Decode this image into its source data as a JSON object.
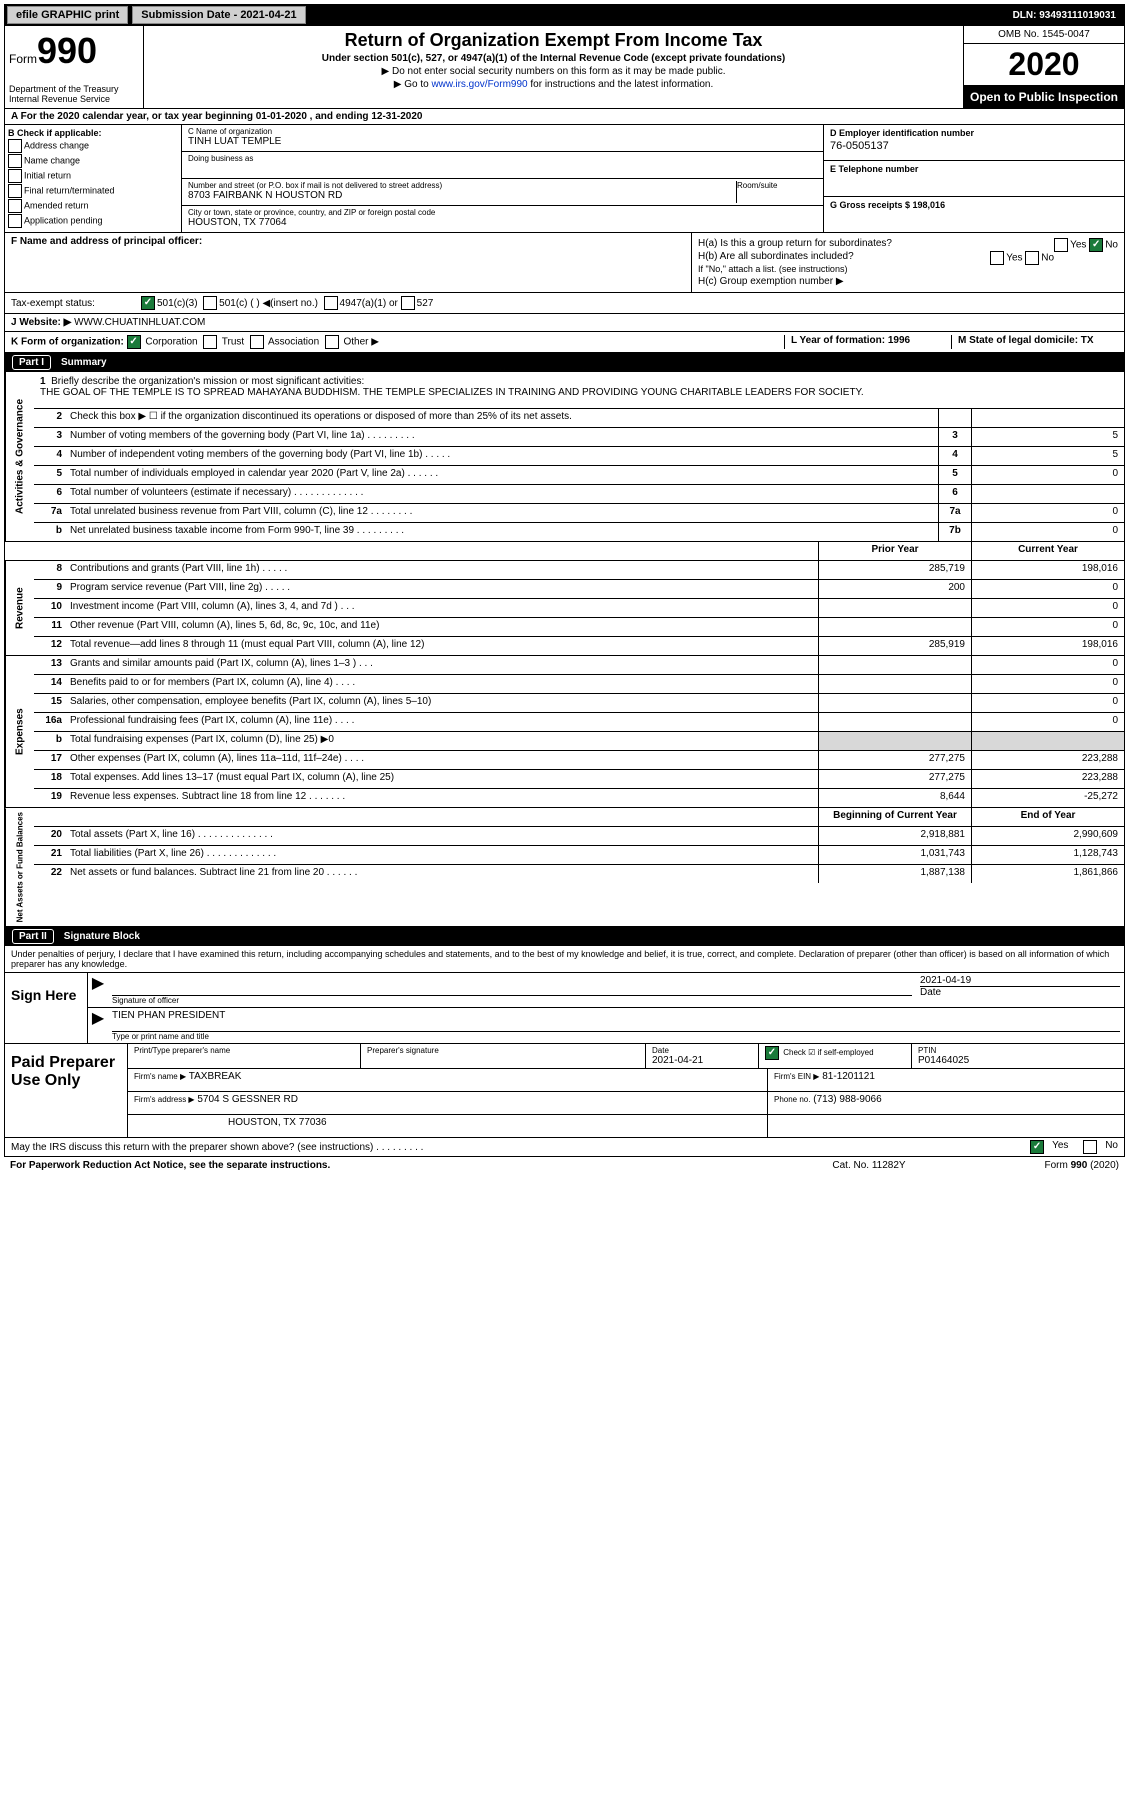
{
  "topbar": {
    "efile": "efile GRAPHIC print",
    "submission_label": "Submission Date - 2021-04-21",
    "dln": "DLN: 93493111019031"
  },
  "header": {
    "form_prefix": "Form",
    "form_number": "990",
    "dept": "Department of the Treasury\nInternal Revenue Service",
    "title": "Return of Organization Exempt From Income Tax",
    "sub1": "Under section 501(c), 527, or 4947(a)(1) of the Internal Revenue Code (except private foundations)",
    "sub2": "▶ Do not enter social security numbers on this form as it may be made public.",
    "sub3_pre": "▶ Go to ",
    "sub3_link": "www.irs.gov/Form990",
    "sub3_post": " for instructions and the latest information.",
    "omb": "OMB No. 1545-0047",
    "year": "2020",
    "open": "Open to Public Inspection"
  },
  "row_a": "A For the 2020 calendar year, or tax year beginning 01-01-2020    , and ending 12-31-2020",
  "section_b": {
    "title": "B Check if applicable:",
    "items": [
      "Address change",
      "Name change",
      "Initial return",
      "Final return/terminated",
      "Amended return",
      "Application pending"
    ]
  },
  "section_c": {
    "name_label": "C Name of organization",
    "name": "TINH LUAT TEMPLE",
    "dba_label": "Doing business as",
    "dba": "",
    "addr_label": "Number and street (or P.O. box if mail is not delivered to street address)",
    "room_label": "Room/suite",
    "addr": "8703 FAIRBANK N HOUSTON RD",
    "city_label": "City or town, state or province, country, and ZIP or foreign postal code",
    "city": "HOUSTON, TX  77064"
  },
  "section_d": {
    "label": "D Employer identification number",
    "value": "76-0505137"
  },
  "section_e": {
    "label": "E Telephone number",
    "value": ""
  },
  "section_g": {
    "label": "G Gross receipts $ 198,016"
  },
  "section_f": {
    "label": "F  Name and address of principal officer:",
    "value": ""
  },
  "section_h": {
    "ha": "H(a)  Is this a group return for subordinates?",
    "ha_yes": "Yes",
    "ha_no": "No",
    "hb": "H(b)  Are all subordinates included?",
    "hb_yes": "Yes",
    "hb_no": "No",
    "hb_note": "If \"No,\" attach a list. (see instructions)",
    "hc": "H(c)  Group exemption number ▶"
  },
  "tax_status": {
    "label": "Tax-exempt status:",
    "opt1": "501(c)(3)",
    "opt2": "501(c) (  ) ◀(insert no.)",
    "opt3": "4947(a)(1) or",
    "opt4": "527"
  },
  "website": {
    "label": "J   Website: ▶",
    "value": "WWW.CHUATINHLUAT.COM"
  },
  "row_k": {
    "label": "K Form of organization:",
    "opts": [
      "Corporation",
      "Trust",
      "Association",
      "Other ▶"
    ]
  },
  "row_l": {
    "label": "L Year of formation: 1996"
  },
  "row_m": {
    "label": "M State of legal domicile: TX"
  },
  "part1": {
    "tab": "Part I",
    "title": "Summary"
  },
  "mission": {
    "num": "1",
    "label": "Briefly describe the organization's mission or most significant activities:",
    "text": "THE GOAL OF THE TEMPLE IS TO SPREAD MAHAYANA BUDDHISM. THE TEMPLE SPECIALIZES IN TRAINING AND PROVIDING YOUNG CHARITABLE LEADERS FOR SOCIETY."
  },
  "governance": {
    "side": "Activities & Governance",
    "rows": [
      {
        "num": "2",
        "desc": "Check this box ▶ ☐  if the organization discontinued its operations or disposed of more than 25% of its net assets.",
        "box": "",
        "v1": "",
        "v2": ""
      },
      {
        "num": "3",
        "desc": "Number of voting members of the governing body (Part VI, line 1a)  .  .  .  .  .  .  .  .  .",
        "box": "3",
        "v1": "",
        "v2": "5"
      },
      {
        "num": "4",
        "desc": "Number of independent voting members of the governing body (Part VI, line 1b)  .  .  .  .  .",
        "box": "4",
        "v1": "",
        "v2": "5"
      },
      {
        "num": "5",
        "desc": "Total number of individuals employed in calendar year 2020 (Part V, line 2a)  .  .  .  .  .  .",
        "box": "5",
        "v1": "",
        "v2": "0"
      },
      {
        "num": "6",
        "desc": "Total number of volunteers (estimate if necessary)  .  .  .  .  .  .  .  .  .  .  .  .  .",
        "box": "6",
        "v1": "",
        "v2": ""
      },
      {
        "num": "7a",
        "desc": "Total unrelated business revenue from Part VIII, column (C), line 12   .  .  .  .  .  .  .  .",
        "box": "7a",
        "v1": "",
        "v2": "0"
      },
      {
        "num": "b",
        "desc": "Net unrelated business taxable income from Form 990-T, line 39  .  .  .  .  .  .  .  .  .",
        "box": "7b",
        "v1": "",
        "v2": "0"
      }
    ]
  },
  "yearhdr": {
    "prior": "Prior Year",
    "current": "Current Year"
  },
  "revenue": {
    "side": "Revenue",
    "rows": [
      {
        "num": "8",
        "desc": "Contributions and grants (Part VIII, line 1h)  .  .  .  .  .",
        "v1": "285,719",
        "v2": "198,016"
      },
      {
        "num": "9",
        "desc": "Program service revenue (Part VIII, line 2g)  .  .  .  .  .",
        "v1": "200",
        "v2": "0"
      },
      {
        "num": "10",
        "desc": "Investment income (Part VIII, column (A), lines 3, 4, and 7d )  .  .  .",
        "v1": "",
        "v2": "0"
      },
      {
        "num": "11",
        "desc": "Other revenue (Part VIII, column (A), lines 5, 6d, 8c, 9c, 10c, and 11e)",
        "v1": "",
        "v2": "0"
      },
      {
        "num": "12",
        "desc": "Total revenue—add lines 8 through 11 (must equal Part VIII, column (A), line 12)",
        "v1": "285,919",
        "v2": "198,016"
      }
    ]
  },
  "expenses": {
    "side": "Expenses",
    "rows": [
      {
        "num": "13",
        "desc": "Grants and similar amounts paid (Part IX, column (A), lines 1–3 )  .  .  .",
        "v1": "",
        "v2": "0"
      },
      {
        "num": "14",
        "desc": "Benefits paid to or for members (Part IX, column (A), line 4)  .  .  .  .",
        "v1": "",
        "v2": "0"
      },
      {
        "num": "15",
        "desc": "Salaries, other compensation, employee benefits (Part IX, column (A), lines 5–10)",
        "v1": "",
        "v2": "0"
      },
      {
        "num": "16a",
        "desc": "Professional fundraising fees (Part IX, column (A), line 11e)  .  .  .  .",
        "v1": "",
        "v2": "0"
      },
      {
        "num": "b",
        "desc": "Total fundraising expenses (Part IX, column (D), line 25) ▶0",
        "v1": "",
        "v2": "",
        "shade": true
      },
      {
        "num": "17",
        "desc": "Other expenses (Part IX, column (A), lines 11a–11d, 11f–24e)  .  .  .  .",
        "v1": "277,275",
        "v2": "223,288"
      },
      {
        "num": "18",
        "desc": "Total expenses. Add lines 13–17 (must equal Part IX, column (A), line 25)",
        "v1": "277,275",
        "v2": "223,288"
      },
      {
        "num": "19",
        "desc": "Revenue less expenses. Subtract line 18 from line 12  .  .  .  .  .  .  .",
        "v1": "8,644",
        "v2": "-25,272"
      }
    ]
  },
  "netassets": {
    "side": "Net Assets or Fund Balances",
    "hdr": {
      "v1": "Beginning of Current Year",
      "v2": "End of Year"
    },
    "rows": [
      {
        "num": "20",
        "desc": "Total assets (Part X, line 16)  .  .  .  .  .  .  .  .  .  .  .  .  .  .",
        "v1": "2,918,881",
        "v2": "2,990,609"
      },
      {
        "num": "21",
        "desc": "Total liabilities (Part X, line 26)  .  .  .  .  .  .  .  .  .  .  .  .  .",
        "v1": "1,031,743",
        "v2": "1,128,743"
      },
      {
        "num": "22",
        "desc": "Net assets or fund balances. Subtract line 21 from line 20  .  .  .  .  .  .",
        "v1": "1,887,138",
        "v2": "1,861,866"
      }
    ]
  },
  "part2": {
    "tab": "Part II",
    "title": "Signature Block"
  },
  "declaration": "Under penalties of perjury, I declare that I have examined this return, including accompanying schedules and statements, and to the best of my knowledge and belief, it is true, correct, and complete. Declaration of preparer (other than officer) is based on all information of which preparer has any knowledge.",
  "sign": {
    "label": "Sign Here",
    "sig_officer_lab": "Signature of officer",
    "date_lab": "Date",
    "date_val": "2021-04-19",
    "name": "TIEN PHAN  PRESIDENT",
    "name_lab": "Type or print name and title"
  },
  "prep": {
    "label": "Paid Preparer Use Only",
    "r1": {
      "c1_lab": "Print/Type preparer's name",
      "c2_lab": "Preparer's signature",
      "c3_lab": "Date",
      "c3_val": "2021-04-21",
      "c4_lab": "Check ☑ if self-employed",
      "c5_lab": "PTIN",
      "c5_val": "P01464025"
    },
    "r2": {
      "c1_lab": "Firm's name    ▶",
      "c1_val": "TAXBREAK",
      "c2_lab": "Firm's EIN ▶",
      "c2_val": "81-1201121"
    },
    "r3": {
      "c1_lab": "Firm's address ▶",
      "c1_val": "5704 S GESSNER RD",
      "c2_lab": "Phone no.",
      "c2_val": "(713) 988-9066"
    },
    "r4": {
      "c1_val": "HOUSTON, TX  77036"
    }
  },
  "discuss": {
    "text": "May the IRS discuss this return with the preparer shown above? (see instructions)  .  .  .  .  .  .  .  .  .",
    "yes": "Yes",
    "no": "No"
  },
  "footer": {
    "left": "For Paperwork Reduction Act Notice, see the separate instructions.",
    "mid": "Cat. No. 11282Y",
    "right": "Form 990 (2020)"
  }
}
